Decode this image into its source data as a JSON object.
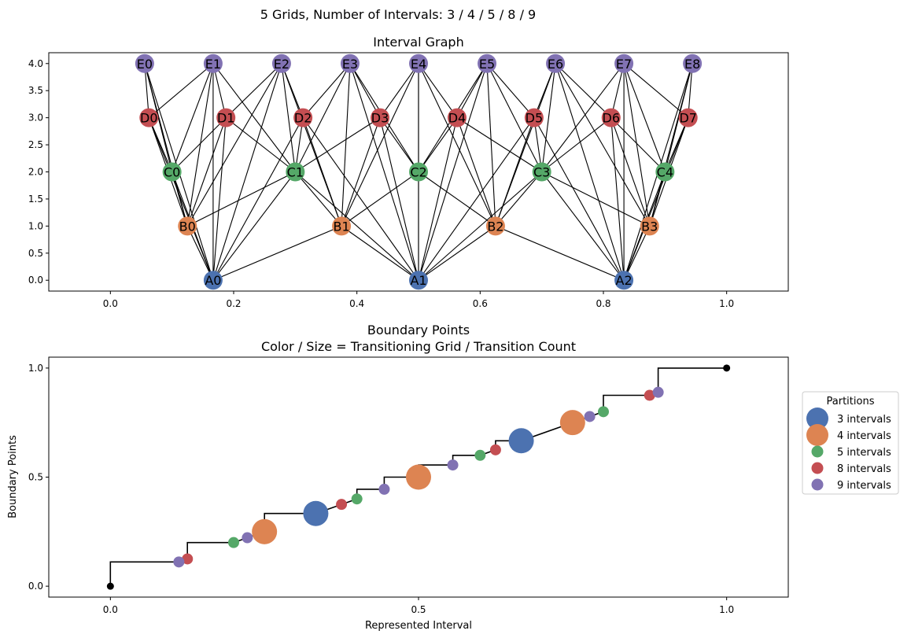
{
  "figure_title": "5 Grids, Number of Intervals: 3 / 4 / 5 / 8 / 9",
  "chart_data": [
    {
      "type": "scatter",
      "variant": "network-graph",
      "title": "Interval Graph",
      "xlabel": "",
      "ylabel": "",
      "xlim": [
        -0.1,
        1.1
      ],
      "ylim": [
        -0.2,
        4.2
      ],
      "xticks": [
        0.0,
        0.2,
        0.4,
        0.6,
        0.8,
        1.0
      ],
      "xtick_labels": [
        "0.0",
        "0.2",
        "0.4",
        "0.6",
        "0.8",
        "1.0"
      ],
      "yticks": [
        0.0,
        0.5,
        1.0,
        1.5,
        2.0,
        2.5,
        3.0,
        3.5,
        4.0
      ],
      "ytick_labels": [
        "0.0",
        "0.5",
        "1.0",
        "1.5",
        "2.0",
        "2.5",
        "3.0",
        "3.5",
        "4.0"
      ],
      "grid": false,
      "levels": [
        {
          "prefix": "A",
          "count": 3,
          "y": 0,
          "color": "#4c72b0"
        },
        {
          "prefix": "B",
          "count": 4,
          "y": 1,
          "color": "#dd8452"
        },
        {
          "prefix": "C",
          "count": 5,
          "y": 2,
          "color": "#55a868"
        },
        {
          "prefix": "D",
          "count": 8,
          "y": 3,
          "color": "#c44e52"
        },
        {
          "prefix": "E",
          "count": 9,
          "y": 4,
          "color": "#8172b3"
        }
      ],
      "edge_rule": "nodes on different levels are connected when their intervals overlap",
      "nodes": [
        {
          "label": "A0",
          "x": 0.1667,
          "y": 0
        },
        {
          "label": "A1",
          "x": 0.5,
          "y": 0
        },
        {
          "label": "A2",
          "x": 0.8333,
          "y": 0
        },
        {
          "label": "B0",
          "x": 0.125,
          "y": 1
        },
        {
          "label": "B1",
          "x": 0.375,
          "y": 1
        },
        {
          "label": "B2",
          "x": 0.625,
          "y": 1
        },
        {
          "label": "B3",
          "x": 0.875,
          "y": 1
        },
        {
          "label": "C0",
          "x": 0.1,
          "y": 2
        },
        {
          "label": "C1",
          "x": 0.3,
          "y": 2
        },
        {
          "label": "C2",
          "x": 0.5,
          "y": 2
        },
        {
          "label": "C3",
          "x": 0.7,
          "y": 2
        },
        {
          "label": "C4",
          "x": 0.9,
          "y": 2
        },
        {
          "label": "D0",
          "x": 0.0625,
          "y": 3
        },
        {
          "label": "D1",
          "x": 0.1875,
          "y": 3
        },
        {
          "label": "D2",
          "x": 0.3125,
          "y": 3
        },
        {
          "label": "D3",
          "x": 0.4375,
          "y": 3
        },
        {
          "label": "D4",
          "x": 0.5625,
          "y": 3
        },
        {
          "label": "D5",
          "x": 0.6875,
          "y": 3
        },
        {
          "label": "D6",
          "x": 0.8125,
          "y": 3
        },
        {
          "label": "D7",
          "x": 0.9375,
          "y": 3
        },
        {
          "label": "E0",
          "x": 0.0556,
          "y": 4
        },
        {
          "label": "E1",
          "x": 0.1667,
          "y": 4
        },
        {
          "label": "E2",
          "x": 0.2778,
          "y": 4
        },
        {
          "label": "E3",
          "x": 0.3889,
          "y": 4
        },
        {
          "label": "E4",
          "x": 0.5,
          "y": 4
        },
        {
          "label": "E5",
          "x": 0.6111,
          "y": 4
        },
        {
          "label": "E6",
          "x": 0.7222,
          "y": 4
        },
        {
          "label": "E7",
          "x": 0.8333,
          "y": 4
        },
        {
          "label": "E8",
          "x": 0.9444,
          "y": 4
        }
      ]
    },
    {
      "type": "scatter",
      "variant": "step-with-markers",
      "title": "Boundary Points",
      "subtitle": "Color / Size = Transitioning Grid / Transition Count",
      "xlabel": "Represented Interval",
      "ylabel": "Boundary Points",
      "xlim": [
        -0.1,
        1.1
      ],
      "ylim": [
        -0.05,
        1.05
      ],
      "xticks": [
        0.0,
        0.5,
        1.0
      ],
      "xtick_labels": [
        "0.0",
        "0.5",
        "1.0"
      ],
      "yticks": [
        0.0,
        0.5,
        1.0
      ],
      "ytick_labels": [
        "0.0",
        "0.5",
        "1.0"
      ],
      "grid": false,
      "legend": {
        "title": "Partitions",
        "position": "right, outside plot",
        "entries": [
          {
            "label": "3 intervals",
            "color": "#4c72b0",
            "size": "large"
          },
          {
            "label": "4 intervals",
            "color": "#dd8452",
            "size": "large"
          },
          {
            "label": "5 intervals",
            "color": "#55a868",
            "size": "small"
          },
          {
            "label": "8 intervals",
            "color": "#c44e52",
            "size": "small"
          },
          {
            "label": "9 intervals",
            "color": "#8172b3",
            "size": "small"
          }
        ]
      },
      "endpoints": [
        {
          "x": 0.0,
          "y": 0.0,
          "color": "#000000"
        },
        {
          "x": 1.0,
          "y": 1.0,
          "color": "#000000"
        }
      ],
      "step_points": [
        [
          0.0,
          0.0
        ],
        [
          0.0,
          0.1111
        ],
        [
          0.1111,
          0.1111
        ],
        [
          0.125,
          0.125
        ],
        [
          0.125,
          0.2
        ],
        [
          0.2,
          0.2
        ],
        [
          0.2222,
          0.2222
        ],
        [
          0.25,
          0.25
        ],
        [
          0.25,
          0.3333
        ],
        [
          0.3333,
          0.3333
        ],
        [
          0.375,
          0.375
        ],
        [
          0.4,
          0.4
        ],
        [
          0.4,
          0.4444
        ],
        [
          0.4444,
          0.4444
        ],
        [
          0.4444,
          0.5
        ],
        [
          0.5,
          0.5
        ],
        [
          0.5,
          0.5556
        ],
        [
          0.5556,
          0.5556
        ],
        [
          0.5556,
          0.6
        ],
        [
          0.6,
          0.6
        ],
        [
          0.625,
          0.625
        ],
        [
          0.625,
          0.6667
        ],
        [
          0.6667,
          0.6667
        ],
        [
          0.75,
          0.75
        ],
        [
          0.7778,
          0.7778
        ],
        [
          0.8,
          0.8
        ],
        [
          0.8,
          0.875
        ],
        [
          0.875,
          0.875
        ],
        [
          0.8889,
          0.8889
        ],
        [
          0.8889,
          1.0
        ],
        [
          1.0,
          1.0
        ]
      ],
      "series": [
        {
          "name": "3 intervals",
          "color": "#4c72b0",
          "size": "large",
          "points": [
            [
              0.3333,
              0.3333
            ],
            [
              0.6667,
              0.6667
            ]
          ]
        },
        {
          "name": "4 intervals",
          "color": "#dd8452",
          "size": "large",
          "points": [
            [
              0.25,
              0.25
            ],
            [
              0.5,
              0.5
            ],
            [
              0.75,
              0.75
            ]
          ]
        },
        {
          "name": "5 intervals",
          "color": "#55a868",
          "size": "small",
          "points": [
            [
              0.2,
              0.2
            ],
            [
              0.4,
              0.4
            ],
            [
              0.6,
              0.6
            ],
            [
              0.8,
              0.8
            ]
          ]
        },
        {
          "name": "8 intervals",
          "color": "#c44e52",
          "size": "small",
          "points": [
            [
              0.125,
              0.125
            ],
            [
              0.375,
              0.375
            ],
            [
              0.625,
              0.625
            ],
            [
              0.875,
              0.875
            ]
          ]
        },
        {
          "name": "9 intervals",
          "color": "#8172b3",
          "size": "small",
          "points": [
            [
              0.1111,
              0.1111
            ],
            [
              0.2222,
              0.2222
            ],
            [
              0.4444,
              0.4444
            ],
            [
              0.5556,
              0.5556
            ],
            [
              0.7778,
              0.7778
            ],
            [
              0.8889,
              0.8889
            ]
          ]
        }
      ]
    }
  ]
}
